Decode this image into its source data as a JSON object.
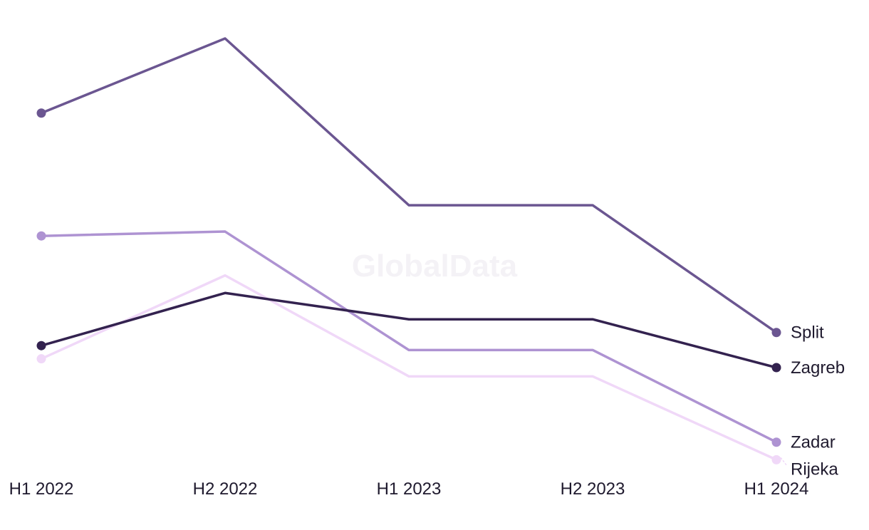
{
  "watermark": "GlobalData",
  "chart_data": {
    "type": "line",
    "title": "",
    "xlabel": "",
    "ylabel": "",
    "categories": [
      "H1 2022",
      "H2 2022",
      "H1 2023",
      "H2 2023",
      "H1 2024"
    ],
    "ylim": [
      0,
      100
    ],
    "grid": false,
    "legend": "end-of-line labels",
    "series": [
      {
        "name": "Split",
        "color": "#6b5691",
        "values": [
          83,
          100,
          62,
          62,
          33
        ]
      },
      {
        "name": "Zagreb",
        "color": "#33224f",
        "values": [
          30,
          42,
          36,
          36,
          25
        ]
      },
      {
        "name": "Zadar",
        "color": "#ae93d2",
        "values": [
          55,
          56,
          29,
          29,
          8
        ]
      },
      {
        "name": "Rijeka",
        "color": "#f0d8f8",
        "values": [
          27,
          46,
          23,
          23,
          4
        ]
      }
    ]
  }
}
